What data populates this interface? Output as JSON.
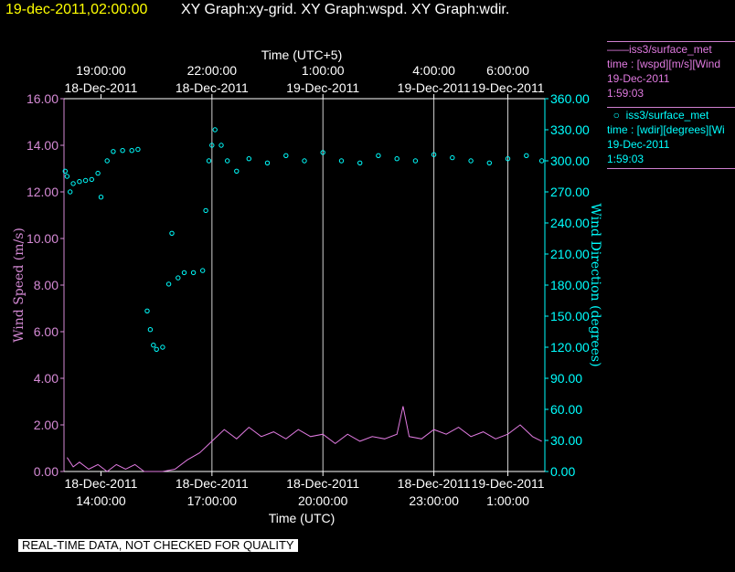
{
  "header": {
    "timestamp": "19-dec-2011,02:00:00",
    "graphs": "XY Graph:xy-grid.  XY Graph:wspd.  XY Graph:wdir."
  },
  "legend": {
    "wspd": {
      "line1": "iss3/surface_met",
      "line2": "time : [wspd][m/s][Wind",
      "line3": "19-Dec-2011",
      "line4": "1:59:03"
    },
    "wdir": {
      "line1": "iss3/surface_met",
      "line2": "time : [wdir][degrees][Wi",
      "line3": "19-Dec-2011",
      "line4": "1:59:03"
    }
  },
  "footer_note": "REAL-TIME DATA, NOT CHECKED FOR QUALITY",
  "colors": {
    "background": "#000000",
    "axes": "#d58ad5",
    "grid": "#d0d0d0",
    "wspd": "#e07ae0",
    "wdir": "#00ffff",
    "header_timestamp": "#ffff00"
  },
  "chart_data": {
    "type": "scatter",
    "x_axis_bottom": {
      "label": "Time (UTC)",
      "range": [
        "2011-12-18 13:00",
        "2011-12-19 02:00"
      ],
      "ticks": [
        {
          "time": "2011-12-18 14:00",
          "date": "18-Dec-2011",
          "clock": "14:00:00"
        },
        {
          "time": "2011-12-18 17:00",
          "date": "18-Dec-2011",
          "clock": "17:00:00"
        },
        {
          "time": "2011-12-18 20:00",
          "date": "18-Dec-2011",
          "clock": "20:00:00"
        },
        {
          "time": "2011-12-18 23:00",
          "date": "18-Dec-2011",
          "clock": "23:00:00"
        },
        {
          "time": "2011-12-19 01:00",
          "date": "19-Dec-2011",
          "clock": "1:00:00"
        }
      ]
    },
    "x_axis_top": {
      "label": "Time (UTC+5)",
      "ticks": [
        {
          "time": "2011-12-18 14:00",
          "date": "18-Dec-2011",
          "clock": "19:00:00"
        },
        {
          "time": "2011-12-18 17:00",
          "date": "18-Dec-2011",
          "clock": "22:00:00"
        },
        {
          "time": "2011-12-18 20:00",
          "date": "19-Dec-2011",
          "clock": "1:00:00"
        },
        {
          "time": "2011-12-18 23:00",
          "date": "19-Dec-2011",
          "clock": "4:00:00"
        },
        {
          "time": "2011-12-19 01:00",
          "date": "19-Dec-2011",
          "clock": "6:00:00"
        }
      ]
    },
    "y_left": {
      "label": "Wind Speed (m/s)",
      "range": [
        0,
        16
      ],
      "ticks": [
        "0.00",
        "2.00",
        "4.00",
        "6.00",
        "8.00",
        "10.00",
        "12.00",
        "14.00",
        "16.00"
      ]
    },
    "y_right": {
      "label": "Wind Direction (degrees)",
      "range": [
        0,
        360
      ],
      "ticks": [
        "0.00",
        "30.00",
        "60.00",
        "90.00",
        "120.00",
        "150.00",
        "180.00",
        "210.00",
        "240.00",
        "270.00",
        "300.00",
        "330.00",
        "360.00"
      ]
    },
    "vertical_grid": [
      "2011-12-18 17:00",
      "2011-12-18 20:00",
      "2011-12-18 23:00",
      "2011-12-19 01:00"
    ],
    "series": [
      {
        "name": "iss3/surface_met",
        "variable": "wspd",
        "style": "line",
        "axis": "left",
        "points": [
          [
            "2011-12-18 13:05",
            0.6
          ],
          [
            "2011-12-18 13:15",
            0.2
          ],
          [
            "2011-12-18 13:25",
            0.4
          ],
          [
            "2011-12-18 13:40",
            0.1
          ],
          [
            "2011-12-18 13:55",
            0.3
          ],
          [
            "2011-12-18 14:10",
            0.0
          ],
          [
            "2011-12-18 14:25",
            0.3
          ],
          [
            "2011-12-18 14:40",
            0.1
          ],
          [
            "2011-12-18 14:55",
            0.3
          ],
          [
            "2011-12-18 15:10",
            0.0
          ],
          [
            "2011-12-18 15:40",
            0.0
          ],
          [
            "2011-12-18 16:00",
            0.1
          ],
          [
            "2011-12-18 16:20",
            0.5
          ],
          [
            "2011-12-18 16:40",
            0.8
          ],
          [
            "2011-12-18 17:00",
            1.3
          ],
          [
            "2011-12-18 17:20",
            1.8
          ],
          [
            "2011-12-18 17:40",
            1.4
          ],
          [
            "2011-12-18 18:00",
            1.9
          ],
          [
            "2011-12-18 18:20",
            1.5
          ],
          [
            "2011-12-18 18:40",
            1.7
          ],
          [
            "2011-12-18 19:00",
            1.4
          ],
          [
            "2011-12-18 19:20",
            1.8
          ],
          [
            "2011-12-18 19:40",
            1.5
          ],
          [
            "2011-12-18 20:00",
            1.6
          ],
          [
            "2011-12-18 20:20",
            1.2
          ],
          [
            "2011-12-18 20:40",
            1.6
          ],
          [
            "2011-12-18 21:00",
            1.3
          ],
          [
            "2011-12-18 21:20",
            1.5
          ],
          [
            "2011-12-18 21:40",
            1.4
          ],
          [
            "2011-12-18 22:00",
            1.6
          ],
          [
            "2011-12-18 22:10",
            2.8
          ],
          [
            "2011-12-18 22:20",
            1.5
          ],
          [
            "2011-12-18 22:40",
            1.4
          ],
          [
            "2011-12-18 23:00",
            1.8
          ],
          [
            "2011-12-18 23:20",
            1.6
          ],
          [
            "2011-12-18 23:40",
            1.9
          ],
          [
            "2011-12-19 00:00",
            1.5
          ],
          [
            "2011-12-19 00:20",
            1.7
          ],
          [
            "2011-12-19 00:40",
            1.4
          ],
          [
            "2011-12-19 01:00",
            1.6
          ],
          [
            "2011-12-19 01:20",
            2.0
          ],
          [
            "2011-12-19 01:40",
            1.5
          ],
          [
            "2011-12-19 01:55",
            1.3
          ]
        ]
      },
      {
        "name": "iss3/surface_met",
        "variable": "wdir",
        "style": "scatter",
        "axis": "right",
        "points": [
          [
            "2011-12-18 13:02",
            290
          ],
          [
            "2011-12-18 13:05",
            285
          ],
          [
            "2011-12-18 13:10",
            270
          ],
          [
            "2011-12-18 13:15",
            278
          ],
          [
            "2011-12-18 13:25",
            280
          ],
          [
            "2011-12-18 13:35",
            281
          ],
          [
            "2011-12-18 13:45",
            282
          ],
          [
            "2011-12-18 13:55",
            288
          ],
          [
            "2011-12-18 14:00",
            265
          ],
          [
            "2011-12-18 14:10",
            300
          ],
          [
            "2011-12-18 14:20",
            309
          ],
          [
            "2011-12-18 14:35",
            310
          ],
          [
            "2011-12-18 14:50",
            310
          ],
          [
            "2011-12-18 15:00",
            311
          ],
          [
            "2011-12-18 15:15",
            155
          ],
          [
            "2011-12-18 15:20",
            137
          ],
          [
            "2011-12-18 15:25",
            122
          ],
          [
            "2011-12-18 15:30",
            118
          ],
          [
            "2011-12-18 15:40",
            120
          ],
          [
            "2011-12-18 15:50",
            181
          ],
          [
            "2011-12-18 15:55",
            230
          ],
          [
            "2011-12-18 16:05",
            187
          ],
          [
            "2011-12-18 16:15",
            192
          ],
          [
            "2011-12-18 16:30",
            192
          ],
          [
            "2011-12-18 16:45",
            194
          ],
          [
            "2011-12-18 16:50",
            252
          ],
          [
            "2011-12-18 16:55",
            300
          ],
          [
            "2011-12-18 17:00",
            315
          ],
          [
            "2011-12-18 17:05",
            330
          ],
          [
            "2011-12-18 17:15",
            315
          ],
          [
            "2011-12-18 17:25",
            300
          ],
          [
            "2011-12-18 17:40",
            290
          ],
          [
            "2011-12-18 18:00",
            302
          ],
          [
            "2011-12-18 18:30",
            298
          ],
          [
            "2011-12-18 19:00",
            305
          ],
          [
            "2011-12-18 19:30",
            300
          ],
          [
            "2011-12-18 20:00",
            308
          ],
          [
            "2011-12-18 20:30",
            300
          ],
          [
            "2011-12-18 21:00",
            298
          ],
          [
            "2011-12-18 21:30",
            305
          ],
          [
            "2011-12-18 22:00",
            302
          ],
          [
            "2011-12-18 22:30",
            300
          ],
          [
            "2011-12-18 23:00",
            306
          ],
          [
            "2011-12-18 23:30",
            303
          ],
          [
            "2011-12-19 00:00",
            300
          ],
          [
            "2011-12-19 00:30",
            298
          ],
          [
            "2011-12-19 01:00",
            302
          ],
          [
            "2011-12-19 01:30",
            305
          ],
          [
            "2011-12-19 01:55",
            300
          ]
        ]
      }
    ],
    "grid": "vertical only",
    "legend_position": "right"
  }
}
